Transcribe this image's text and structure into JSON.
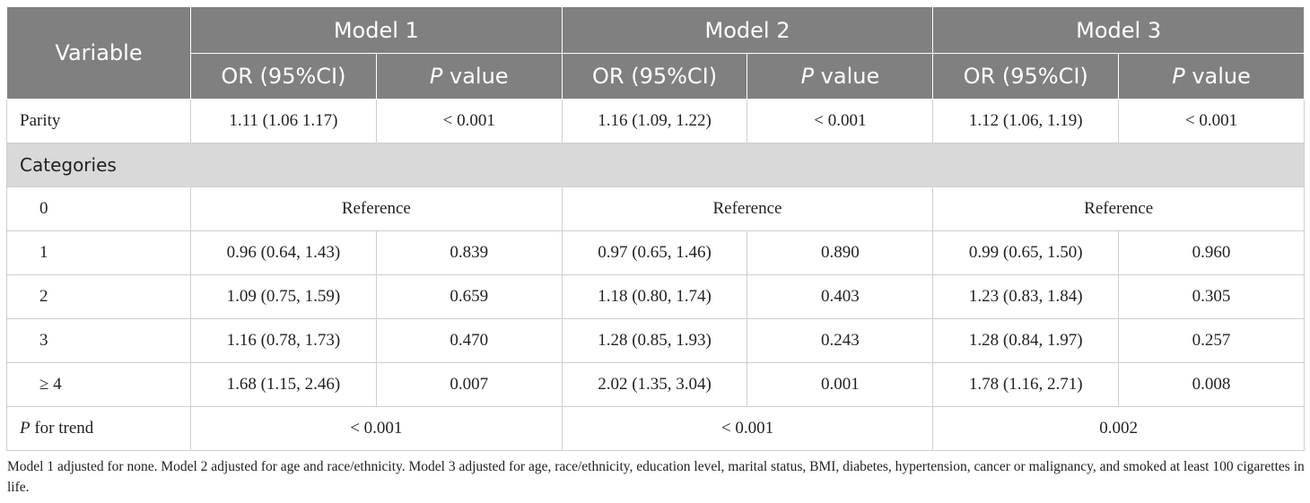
{
  "header": {
    "variable": "Variable",
    "models": [
      "Model 1",
      "Model 2",
      "Model 3"
    ],
    "or_label": "OR (95%CI)",
    "p_italic": "P",
    "p_rest": " value"
  },
  "parity": {
    "label": "Parity",
    "m1_or": "1.11 (1.06 1.17)",
    "m1_p": "< 0.001",
    "m2_or": "1.16 (1.09, 1.22)",
    "m2_p": "< 0.001",
    "m3_or": "1.12 (1.06, 1.19)",
    "m3_p": "< 0.001"
  },
  "categories_label": "Categories",
  "rows": [
    {
      "label": "0",
      "reference": "Reference"
    },
    {
      "label": "1",
      "m1_or": "0.96 (0.64, 1.43)",
      "m1_p": "0.839",
      "m2_or": "0.97 (0.65, 1.46)",
      "m2_p": "0.890",
      "m3_or": "0.99 (0.65, 1.50)",
      "m3_p": "0.960"
    },
    {
      "label": "2",
      "m1_or": "1.09 (0.75, 1.59)",
      "m1_p": "0.659",
      "m2_or": "1.18 (0.80, 1.74)",
      "m2_p": "0.403",
      "m3_or": "1.23 (0.83, 1.84)",
      "m3_p": "0.305"
    },
    {
      "label": "3",
      "m1_or": "1.16 (0.78, 1.73)",
      "m1_p": "0.470",
      "m2_or": "1.28 (0.85, 1.93)",
      "m2_p": "0.243",
      "m3_or": "1.28 (0.84, 1.97)",
      "m3_p": "0.257"
    },
    {
      "label": "≥ 4",
      "m1_or": "1.68 (1.15, 2.46)",
      "m1_p": "0.007",
      "m2_or": "2.02 (1.35, 3.04)",
      "m2_p": "0.001",
      "m3_or": "1.78 (1.16, 2.71)",
      "m3_p": "0.008"
    }
  ],
  "trend": {
    "p_italic": "P",
    "label_rest": " for trend",
    "m1": "< 0.001",
    "m2": "< 0.001",
    "m3": "0.002"
  },
  "footnote": "Model 1 adjusted for none. Model 2 adjusted for age and race/ethnicity. Model 3 adjusted for age, race/ethnicity, education level, marital status, BMI, diabetes, hypertension, cancer or malignancy, and smoked at least 100 cigarettes in life."
}
